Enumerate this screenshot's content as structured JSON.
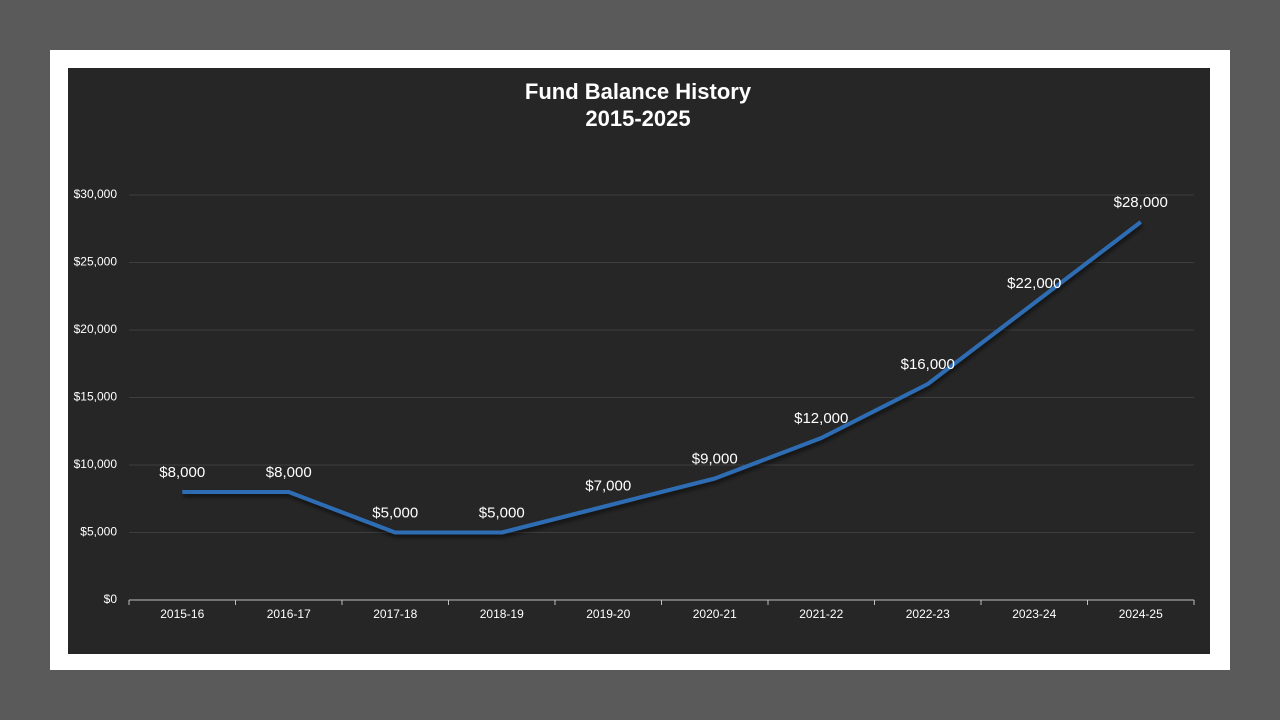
{
  "chart_data": {
    "type": "line",
    "title": "Fund Balance History",
    "subtitle": "2015-2025",
    "categories": [
      "2015-16",
      "2016-17",
      "2017-18",
      "2018-19",
      "2019-20",
      "2020-21",
      "2021-22",
      "2022-23",
      "2023-24",
      "2024-25"
    ],
    "series": [
      {
        "name": "Fund Balance",
        "color": "#2e6db4",
        "values": [
          8000,
          8000,
          5000,
          5000,
          7000,
          9000,
          12000,
          16000,
          22000,
          28000
        ],
        "value_labels": [
          "$8,000",
          "$8,000",
          "$5,000",
          "$5,000",
          "$7,000",
          "$9,000",
          "$12,000",
          "$16,000",
          "$22,000",
          "$28,000"
        ]
      }
    ],
    "ylim": [
      0,
      30000
    ],
    "yticks": [
      {
        "value": 0,
        "label": "$0"
      },
      {
        "value": 5000,
        "label": "$5,000"
      },
      {
        "value": 10000,
        "label": "$10,000"
      },
      {
        "value": 15000,
        "label": "$15,000"
      },
      {
        "value": 20000,
        "label": "$20,000"
      },
      {
        "value": 25000,
        "label": "$25,000"
      },
      {
        "value": 30000,
        "label": "$30,000"
      }
    ],
    "grid": true
  }
}
